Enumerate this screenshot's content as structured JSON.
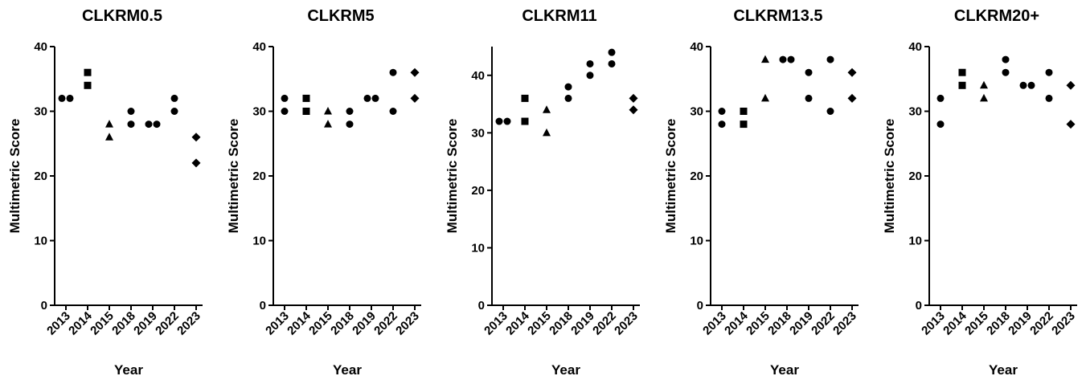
{
  "chart_data": [
    {
      "type": "scatter",
      "title": "CLKRM0.5",
      "xlabel": "Year",
      "ylabel": "Multimetric Score",
      "categories": [
        "2013",
        "2014",
        "2015",
        "2018",
        "2019",
        "2022",
        "2023"
      ],
      "ylim": [
        0,
        40
      ],
      "yticks": [
        0,
        10,
        20,
        30,
        40
      ],
      "grid": false,
      "legend": "none",
      "marker_by_category": [
        "circle",
        "square",
        "triangle",
        "circle",
        "circle",
        "circle",
        "diamond"
      ],
      "points": [
        {
          "x": "2013",
          "y": 32
        },
        {
          "x": "2013",
          "y": 32
        },
        {
          "x": "2014",
          "y": 36
        },
        {
          "x": "2014",
          "y": 34
        },
        {
          "x": "2015",
          "y": 28
        },
        {
          "x": "2015",
          "y": 26
        },
        {
          "x": "2018",
          "y": 30
        },
        {
          "x": "2018",
          "y": 28
        },
        {
          "x": "2019",
          "y": 28
        },
        {
          "x": "2019",
          "y": 28
        },
        {
          "x": "2022",
          "y": 32
        },
        {
          "x": "2022",
          "y": 30
        },
        {
          "x": "2023",
          "y": 26
        },
        {
          "x": "2023",
          "y": 22
        }
      ]
    },
    {
      "type": "scatter",
      "title": "CLKRM5",
      "xlabel": "Year",
      "ylabel": "Multimetric Score",
      "categories": [
        "2013",
        "2014",
        "2015",
        "2018",
        "2019",
        "2022",
        "2023"
      ],
      "ylim": [
        0,
        40
      ],
      "yticks": [
        0,
        10,
        20,
        30,
        40
      ],
      "grid": false,
      "legend": "none",
      "marker_by_category": [
        "circle",
        "square",
        "triangle",
        "circle",
        "circle",
        "circle",
        "diamond"
      ],
      "points": [
        {
          "x": "2013",
          "y": 32
        },
        {
          "x": "2013",
          "y": 30
        },
        {
          "x": "2014",
          "y": 32
        },
        {
          "x": "2014",
          "y": 30
        },
        {
          "x": "2015",
          "y": 30
        },
        {
          "x": "2015",
          "y": 28
        },
        {
          "x": "2018",
          "y": 30
        },
        {
          "x": "2018",
          "y": 28
        },
        {
          "x": "2019",
          "y": 32
        },
        {
          "x": "2019",
          "y": 32
        },
        {
          "x": "2022",
          "y": 36
        },
        {
          "x": "2022",
          "y": 30
        },
        {
          "x": "2023",
          "y": 36
        },
        {
          "x": "2023",
          "y": 32
        }
      ]
    },
    {
      "type": "scatter",
      "title": "CLKRM11",
      "xlabel": "Year",
      "ylabel": "Multimetric Score",
      "categories": [
        "2013",
        "2014",
        "2015",
        "2018",
        "2019",
        "2022",
        "2023"
      ],
      "ylim": [
        0,
        45
      ],
      "yticks": [
        0,
        10,
        20,
        30,
        40
      ],
      "grid": false,
      "legend": "none",
      "marker_by_category": [
        "circle",
        "square",
        "triangle",
        "circle",
        "circle",
        "circle",
        "diamond"
      ],
      "points": [
        {
          "x": "2013",
          "y": 32
        },
        {
          "x": "2013",
          "y": 32
        },
        {
          "x": "2014",
          "y": 36
        },
        {
          "x": "2014",
          "y": 32
        },
        {
          "x": "2015",
          "y": 34
        },
        {
          "x": "2015",
          "y": 30
        },
        {
          "x": "2018",
          "y": 38
        },
        {
          "x": "2018",
          "y": 36
        },
        {
          "x": "2019",
          "y": 42
        },
        {
          "x": "2019",
          "y": 40
        },
        {
          "x": "2022",
          "y": 44
        },
        {
          "x": "2022",
          "y": 42
        },
        {
          "x": "2023",
          "y": 36
        },
        {
          "x": "2023",
          "y": 34
        }
      ]
    },
    {
      "type": "scatter",
      "title": "CLKRM13.5",
      "xlabel": "Year",
      "ylabel": "Multimetric Score",
      "categories": [
        "2013",
        "2014",
        "2015",
        "2018",
        "2019",
        "2022",
        "2023"
      ],
      "ylim": [
        0,
        40
      ],
      "yticks": [
        0,
        10,
        20,
        30,
        40
      ],
      "grid": false,
      "legend": "none",
      "marker_by_category": [
        "circle",
        "square",
        "triangle",
        "circle",
        "circle",
        "circle",
        "diamond"
      ],
      "points": [
        {
          "x": "2013",
          "y": 30
        },
        {
          "x": "2013",
          "y": 28
        },
        {
          "x": "2014",
          "y": 30
        },
        {
          "x": "2014",
          "y": 28
        },
        {
          "x": "2015",
          "y": 38
        },
        {
          "x": "2015",
          "y": 32
        },
        {
          "x": "2018",
          "y": 38
        },
        {
          "x": "2018",
          "y": 38
        },
        {
          "x": "2019",
          "y": 36
        },
        {
          "x": "2019",
          "y": 32
        },
        {
          "x": "2022",
          "y": 38
        },
        {
          "x": "2022",
          "y": 30
        },
        {
          "x": "2023",
          "y": 36
        },
        {
          "x": "2023",
          "y": 32
        }
      ]
    },
    {
      "type": "scatter",
      "title": "CLKRM20+",
      "xlabel": "Year",
      "ylabel": "Multimetric Score",
      "categories": [
        "2013",
        "2014",
        "2015",
        "2018",
        "2019",
        "2022",
        "2023"
      ],
      "ylim": [
        0,
        40
      ],
      "yticks": [
        0,
        10,
        20,
        30,
        40
      ],
      "grid": false,
      "legend": "none",
      "marker_by_category": [
        "circle",
        "square",
        "triangle",
        "circle",
        "circle",
        "circle",
        "diamond"
      ],
      "points": [
        {
          "x": "2013",
          "y": 32
        },
        {
          "x": "2013",
          "y": 28
        },
        {
          "x": "2014",
          "y": 36
        },
        {
          "x": "2014",
          "y": 34
        },
        {
          "x": "2015",
          "y": 34
        },
        {
          "x": "2015",
          "y": 32
        },
        {
          "x": "2018",
          "y": 38
        },
        {
          "x": "2018",
          "y": 36
        },
        {
          "x": "2019",
          "y": 34
        },
        {
          "x": "2019",
          "y": 34
        },
        {
          "x": "2022",
          "y": 36
        },
        {
          "x": "2022",
          "y": 32
        },
        {
          "x": "2023",
          "y": 34
        },
        {
          "x": "2023",
          "y": 28
        }
      ]
    }
  ]
}
